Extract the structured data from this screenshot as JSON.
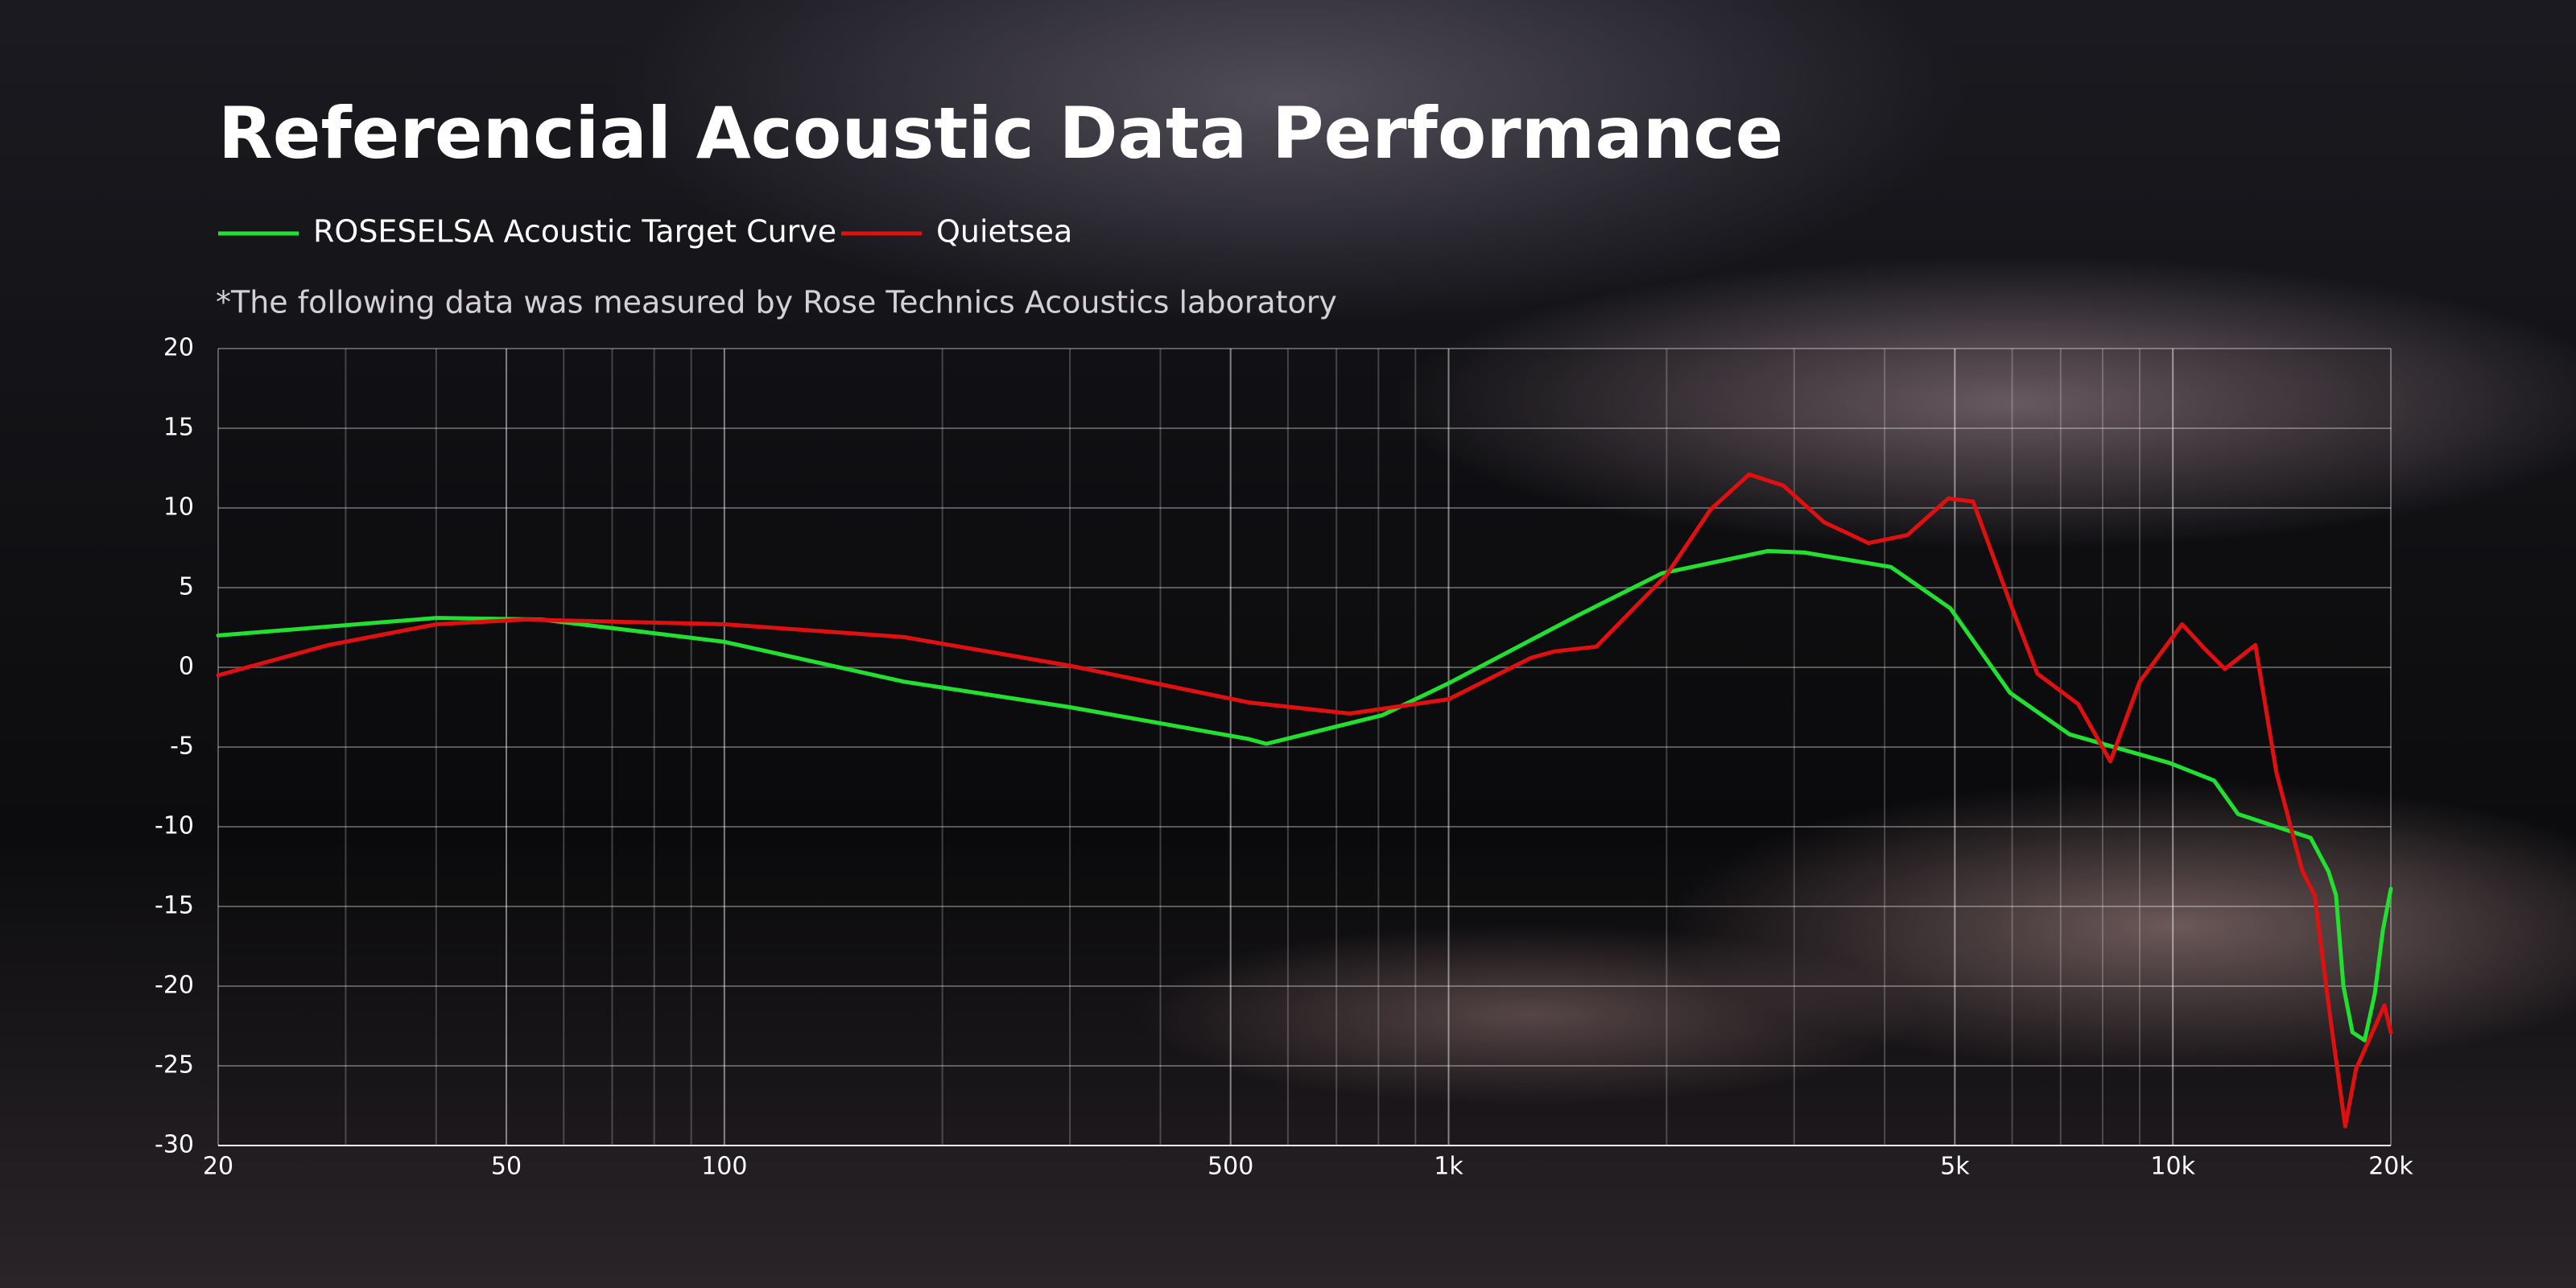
{
  "chart_data": {
    "type": "line",
    "title": "Referencial Acoustic Data Performance",
    "subtitle": "*The following data was measured by Rose Technics Acoustics laboratory",
    "xscale": "log",
    "grid": true,
    "minor_grid": true,
    "xlim": [
      20,
      20000
    ],
    "ylim": [
      -30,
      20
    ],
    "xticks": [
      20,
      50,
      100,
      500,
      {
        "value": 1000,
        "label": "1k"
      },
      {
        "value": 5000,
        "label": "5k"
      },
      {
        "value": 10000,
        "label": "10k"
      },
      {
        "value": 20000,
        "label": "20k"
      }
    ],
    "yticks": [
      -30,
      -25,
      -20,
      -15,
      -10,
      -5,
      0,
      5,
      10,
      15,
      20
    ],
    "series": [
      {
        "name": "ROSESELSA Acoustic Target Curve",
        "color": "#22e030",
        "x": [
          20,
          40,
          56,
          100,
          177,
          300,
          530,
          560,
          810,
          1000,
          1500,
          1970,
          2760,
          3100,
          4080,
          4930,
          5960,
          7200,
          9900,
          11400,
          12300,
          13900,
          15500,
          16400,
          16800,
          17200,
          17700,
          18400,
          19000,
          19500,
          20000
        ],
        "values": [
          2,
          3.1,
          3,
          1.6,
          -0.9,
          -2.5,
          -4.5,
          -4.8,
          -3,
          -1,
          3.2,
          5.9,
          7.3,
          7.2,
          6.3,
          3.7,
          -1.6,
          -4.2,
          -6,
          -7.1,
          -9.2,
          -10,
          -10.7,
          -12.8,
          -14.3,
          -20,
          -22.9,
          -23.4,
          -20.5,
          -16.5,
          -13.9
        ]
      },
      {
        "name": "Quietsea",
        "color": "#e01010",
        "x": [
          20,
          28.4,
          40,
          53,
          100,
          177,
          300,
          530,
          730,
          1000,
          1300,
          1400,
          1600,
          2000,
          2300,
          2600,
          2900,
          3300,
          3800,
          4300,
          4900,
          5300,
          6000,
          6500,
          7400,
          8200,
          9000,
          10300,
          11100,
          11800,
          13000,
          13900,
          15100,
          15700,
          16500,
          17300,
          17900,
          19600,
          20000
        ],
        "values": [
          -0.5,
          1.4,
          2.7,
          3,
          2.7,
          1.9,
          0.1,
          -2.2,
          -2.9,
          -2,
          0.6,
          1,
          1.3,
          5.8,
          9.9,
          12.1,
          11.4,
          9.1,
          7.8,
          8.3,
          10.6,
          10.4,
          3.7,
          -0.4,
          -2.3,
          -5.9,
          -0.9,
          2.7,
          1.1,
          -0.1,
          1.4,
          -6.6,
          -12.8,
          -14.3,
          -22,
          -28.8,
          -25.2,
          -21.2,
          -22.9
        ]
      }
    ]
  }
}
